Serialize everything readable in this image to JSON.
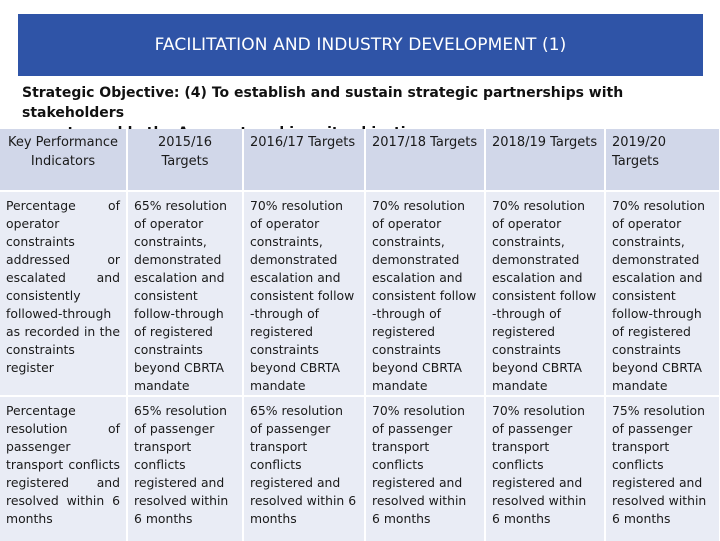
{
  "slide": {
    "title": "FACILITATION AND INDUSTRY DEVELOPMENT (1)",
    "objective_line1": "Strategic Objective: (4) To establish and sustain strategic partnerships with stakeholders",
    "objective_line2": "so as to enable the Agency to achieve its objectives"
  },
  "table": {
    "headers": [
      "Key Performance Indicators",
      "2015/16 Targets",
      "2016/17 Targets",
      "2017/18 Targets",
      "2018/19 Targets",
      "2019/20 Targets"
    ],
    "rows": [
      [
        "Percentage of operator constraints addressed or escalated and consistently followed-through as recorded in the constraints register",
        "65% resolution of operator constraints, demonstrated escalation and consistent follow-through of registered constraints beyond CBRTA mandate",
        "70% resolution of operator constraints, demonstrated escalation and consistent follow -through of registered constraints beyond CBRTA mandate",
        "70% resolution of operator constraints, demonstrated escalation and consistent follow -through of registered constraints beyond CBRTA mandate",
        "70% resolution of operator constraints, demonstrated escalation and consistent follow -through of registered constraints beyond CBRTA mandate",
        "70% resolution of operator constraints, demonstrated escalation and consistent follow-through of registered constraints beyond CBRTA mandate"
      ],
      [
        "Percentage resolution of passenger transport conflicts registered and resolved within 6 months",
        "65% resolution of passenger transport conflicts registered and resolved within 6 months",
        "65% resolution of passenger transport conflicts registered and resolved within 6 months",
        "70% resolution of passenger transport conflicts registered and resolved within 6 months",
        "70% resolution of passenger transport conflicts registered and resolved within 6 months",
        "75% resolution of passenger transport conflicts registered and resolved within 6 months"
      ]
    ]
  },
  "colors": {
    "title_bg": "#2f54a7",
    "header_bg": "#d1d7e9",
    "row_bg": "#e9ecf5"
  }
}
